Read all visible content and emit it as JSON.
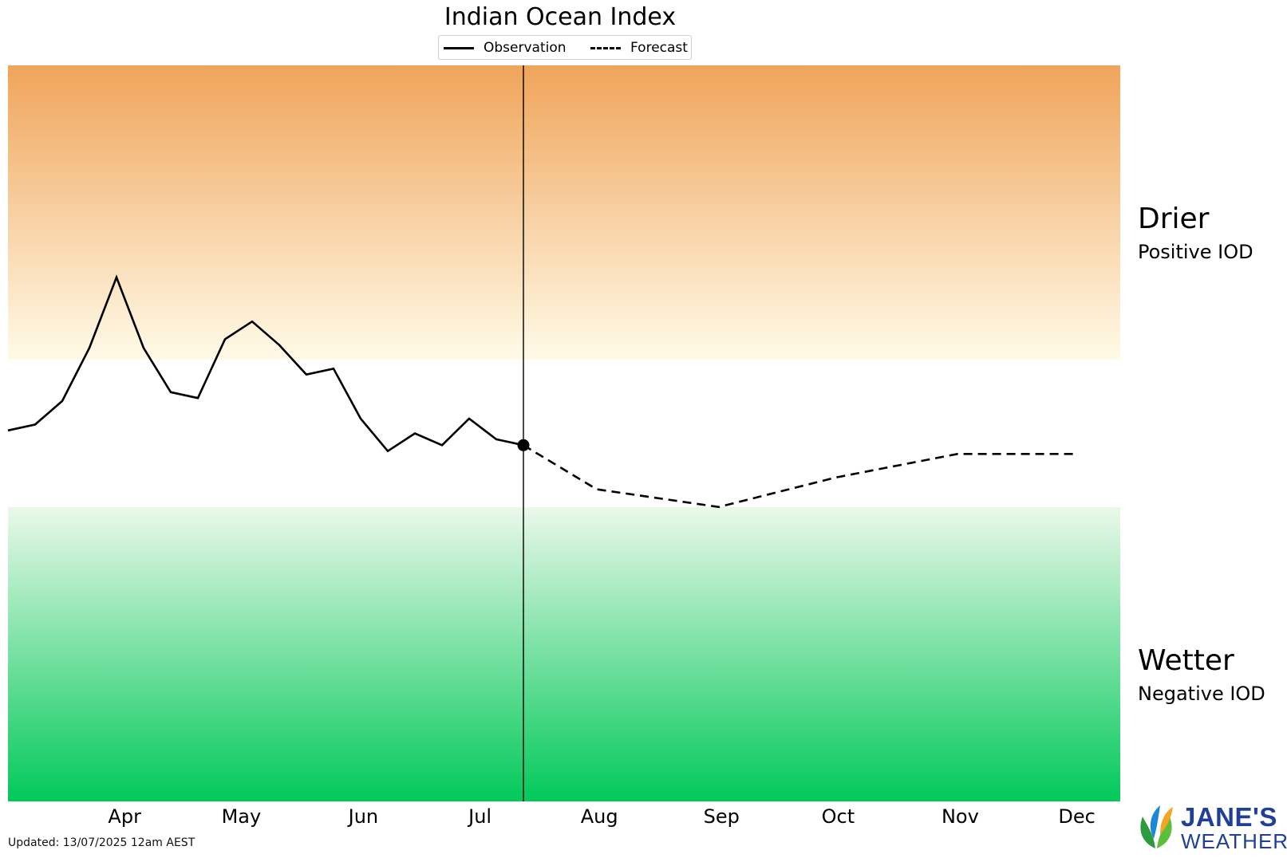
{
  "chart_data": {
    "type": "line",
    "title": "Indian Ocean Index",
    "xlabel": "",
    "ylabel": "",
    "x_tick_labels": [
      "Apr",
      "May",
      "Jun",
      "Jul",
      "Aug",
      "Sep",
      "Oct",
      "Nov",
      "Dec"
    ],
    "ylim": [
      -1.25,
      1.25
    ],
    "xlim": [
      0,
      41
    ],
    "legend": {
      "placement": "top-center",
      "entries": [
        {
          "label": "Observation",
          "style": "solid"
        },
        {
          "label": "Forecast",
          "style": "dashed"
        }
      ]
    },
    "series": [
      {
        "name": "Observation",
        "style": "solid",
        "x": [
          0,
          1,
          2,
          3,
          4,
          5,
          6,
          7,
          8,
          9,
          10,
          11,
          12,
          13,
          14,
          15,
          16,
          17,
          18,
          19
        ],
        "y": [
          0.01,
          0.03,
          0.11,
          0.29,
          0.53,
          0.29,
          0.14,
          0.12,
          0.32,
          0.38,
          0.3,
          0.2,
          0.22,
          0.05,
          -0.06,
          0.0,
          -0.04,
          0.05,
          -0.02,
          -0.04
        ]
      },
      {
        "name": "Forecast",
        "style": "dashed",
        "x": [
          19,
          21.7,
          26.2,
          30.5,
          35,
          39.4
        ],
        "y": [
          -0.04,
          -0.19,
          -0.25,
          -0.15,
          -0.07,
          -0.07
        ]
      }
    ],
    "current_marker": {
      "x": 19,
      "y": -0.04
    },
    "x_tick_positions": [
      4.3,
      8.6,
      13.1,
      17.4,
      21.8,
      26.3,
      30.6,
      35.1,
      39.4
    ],
    "bands": [
      {
        "from": 0.25,
        "to": 1.25,
        "colors": [
          "#fffbe8",
          "#f0a45a"
        ]
      },
      {
        "from": -1.25,
        "to": -0.25,
        "colors": [
          "#ebf8ea",
          "#02c95a"
        ]
      }
    ],
    "grid": false
  },
  "zones": {
    "drier": {
      "label": "Drier",
      "sub": "Positive IOD"
    },
    "wetter": {
      "label": "Wetter",
      "sub": "Negative IOD"
    }
  },
  "footer": {
    "updated": "Updated: 13/07/2025 12am AEST"
  },
  "logo": {
    "line1": "JANE'S",
    "line2": "WEATHER"
  }
}
